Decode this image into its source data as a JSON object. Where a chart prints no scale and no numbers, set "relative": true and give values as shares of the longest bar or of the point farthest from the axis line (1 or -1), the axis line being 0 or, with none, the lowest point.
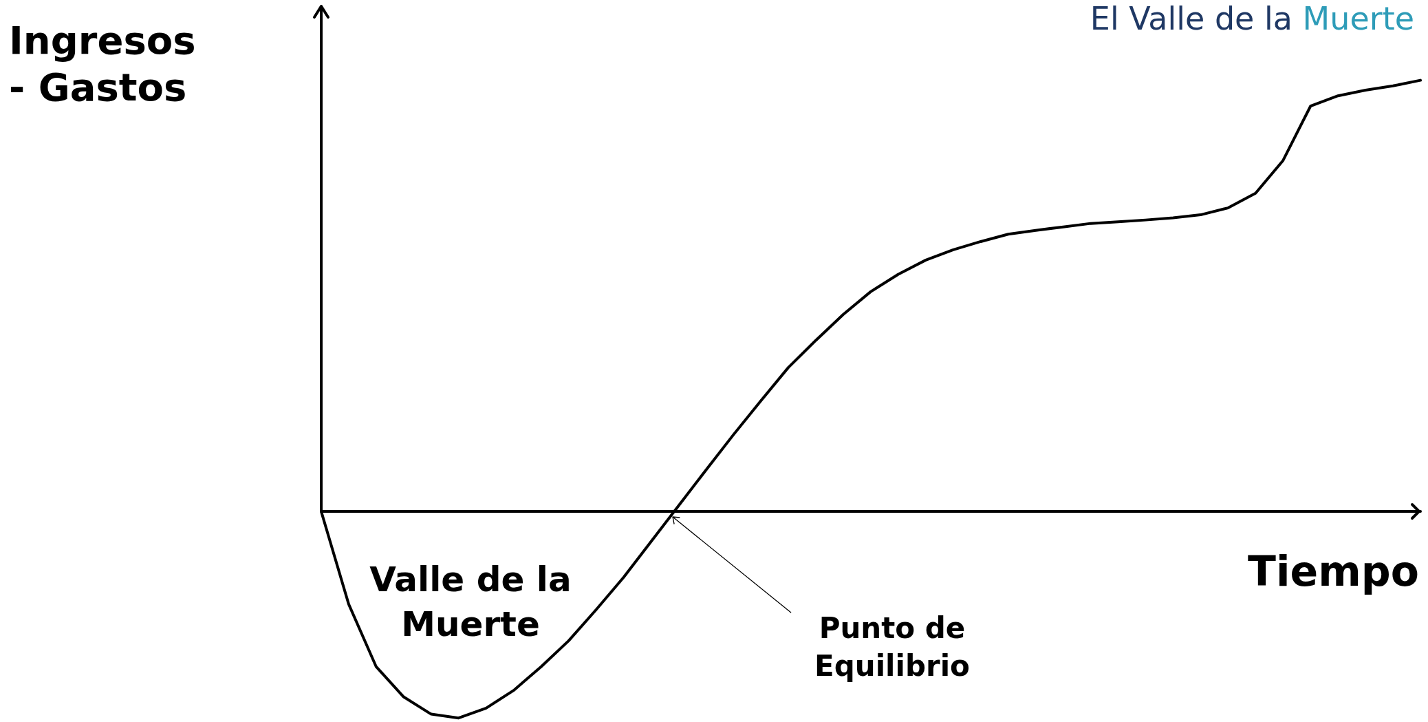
{
  "chart_data": {
    "type": "line",
    "title": "El Valle de la Muerte",
    "xlabel": "Tiempo",
    "ylabel": "Ingresos\n- Gastos",
    "relative": true,
    "tick_labels": false,
    "marker": "none",
    "line_style": "solid",
    "annotations": [
      "Valle de la\nMuerte",
      "Punto de\nEquilibrio"
    ],
    "categories": [
      null,
      null,
      null,
      null,
      null,
      null,
      null,
      null,
      null,
      null,
      null,
      null,
      null,
      null,
      null,
      null,
      null,
      null,
      null,
      null,
      null,
      null,
      null,
      null,
      null,
      null,
      null,
      null,
      null,
      null,
      null,
      null,
      null,
      null,
      null,
      null,
      null,
      null,
      null,
      null,
      null
    ],
    "series": [
      {
        "color": "#000000",
        "values": [
          0,
          -0.215,
          -0.36,
          -0.43,
          -0.47,
          -0.479,
          -0.456,
          -0.415,
          -0.36,
          -0.3,
          -0.228,
          -0.153,
          -0.07,
          0.013,
          0.096,
          0.178,
          0.257,
          0.334,
          0.397,
          0.457,
          0.51,
          0.55,
          0.583,
          0.607,
          0.626,
          0.643,
          0.652,
          0.66,
          0.668,
          0.672,
          0.676,
          0.681,
          0.688,
          0.704,
          0.738,
          0.814,
          0.94,
          0.964,
          0.977,
          0.987,
          1
        ]
      }
    ]
  }
}
